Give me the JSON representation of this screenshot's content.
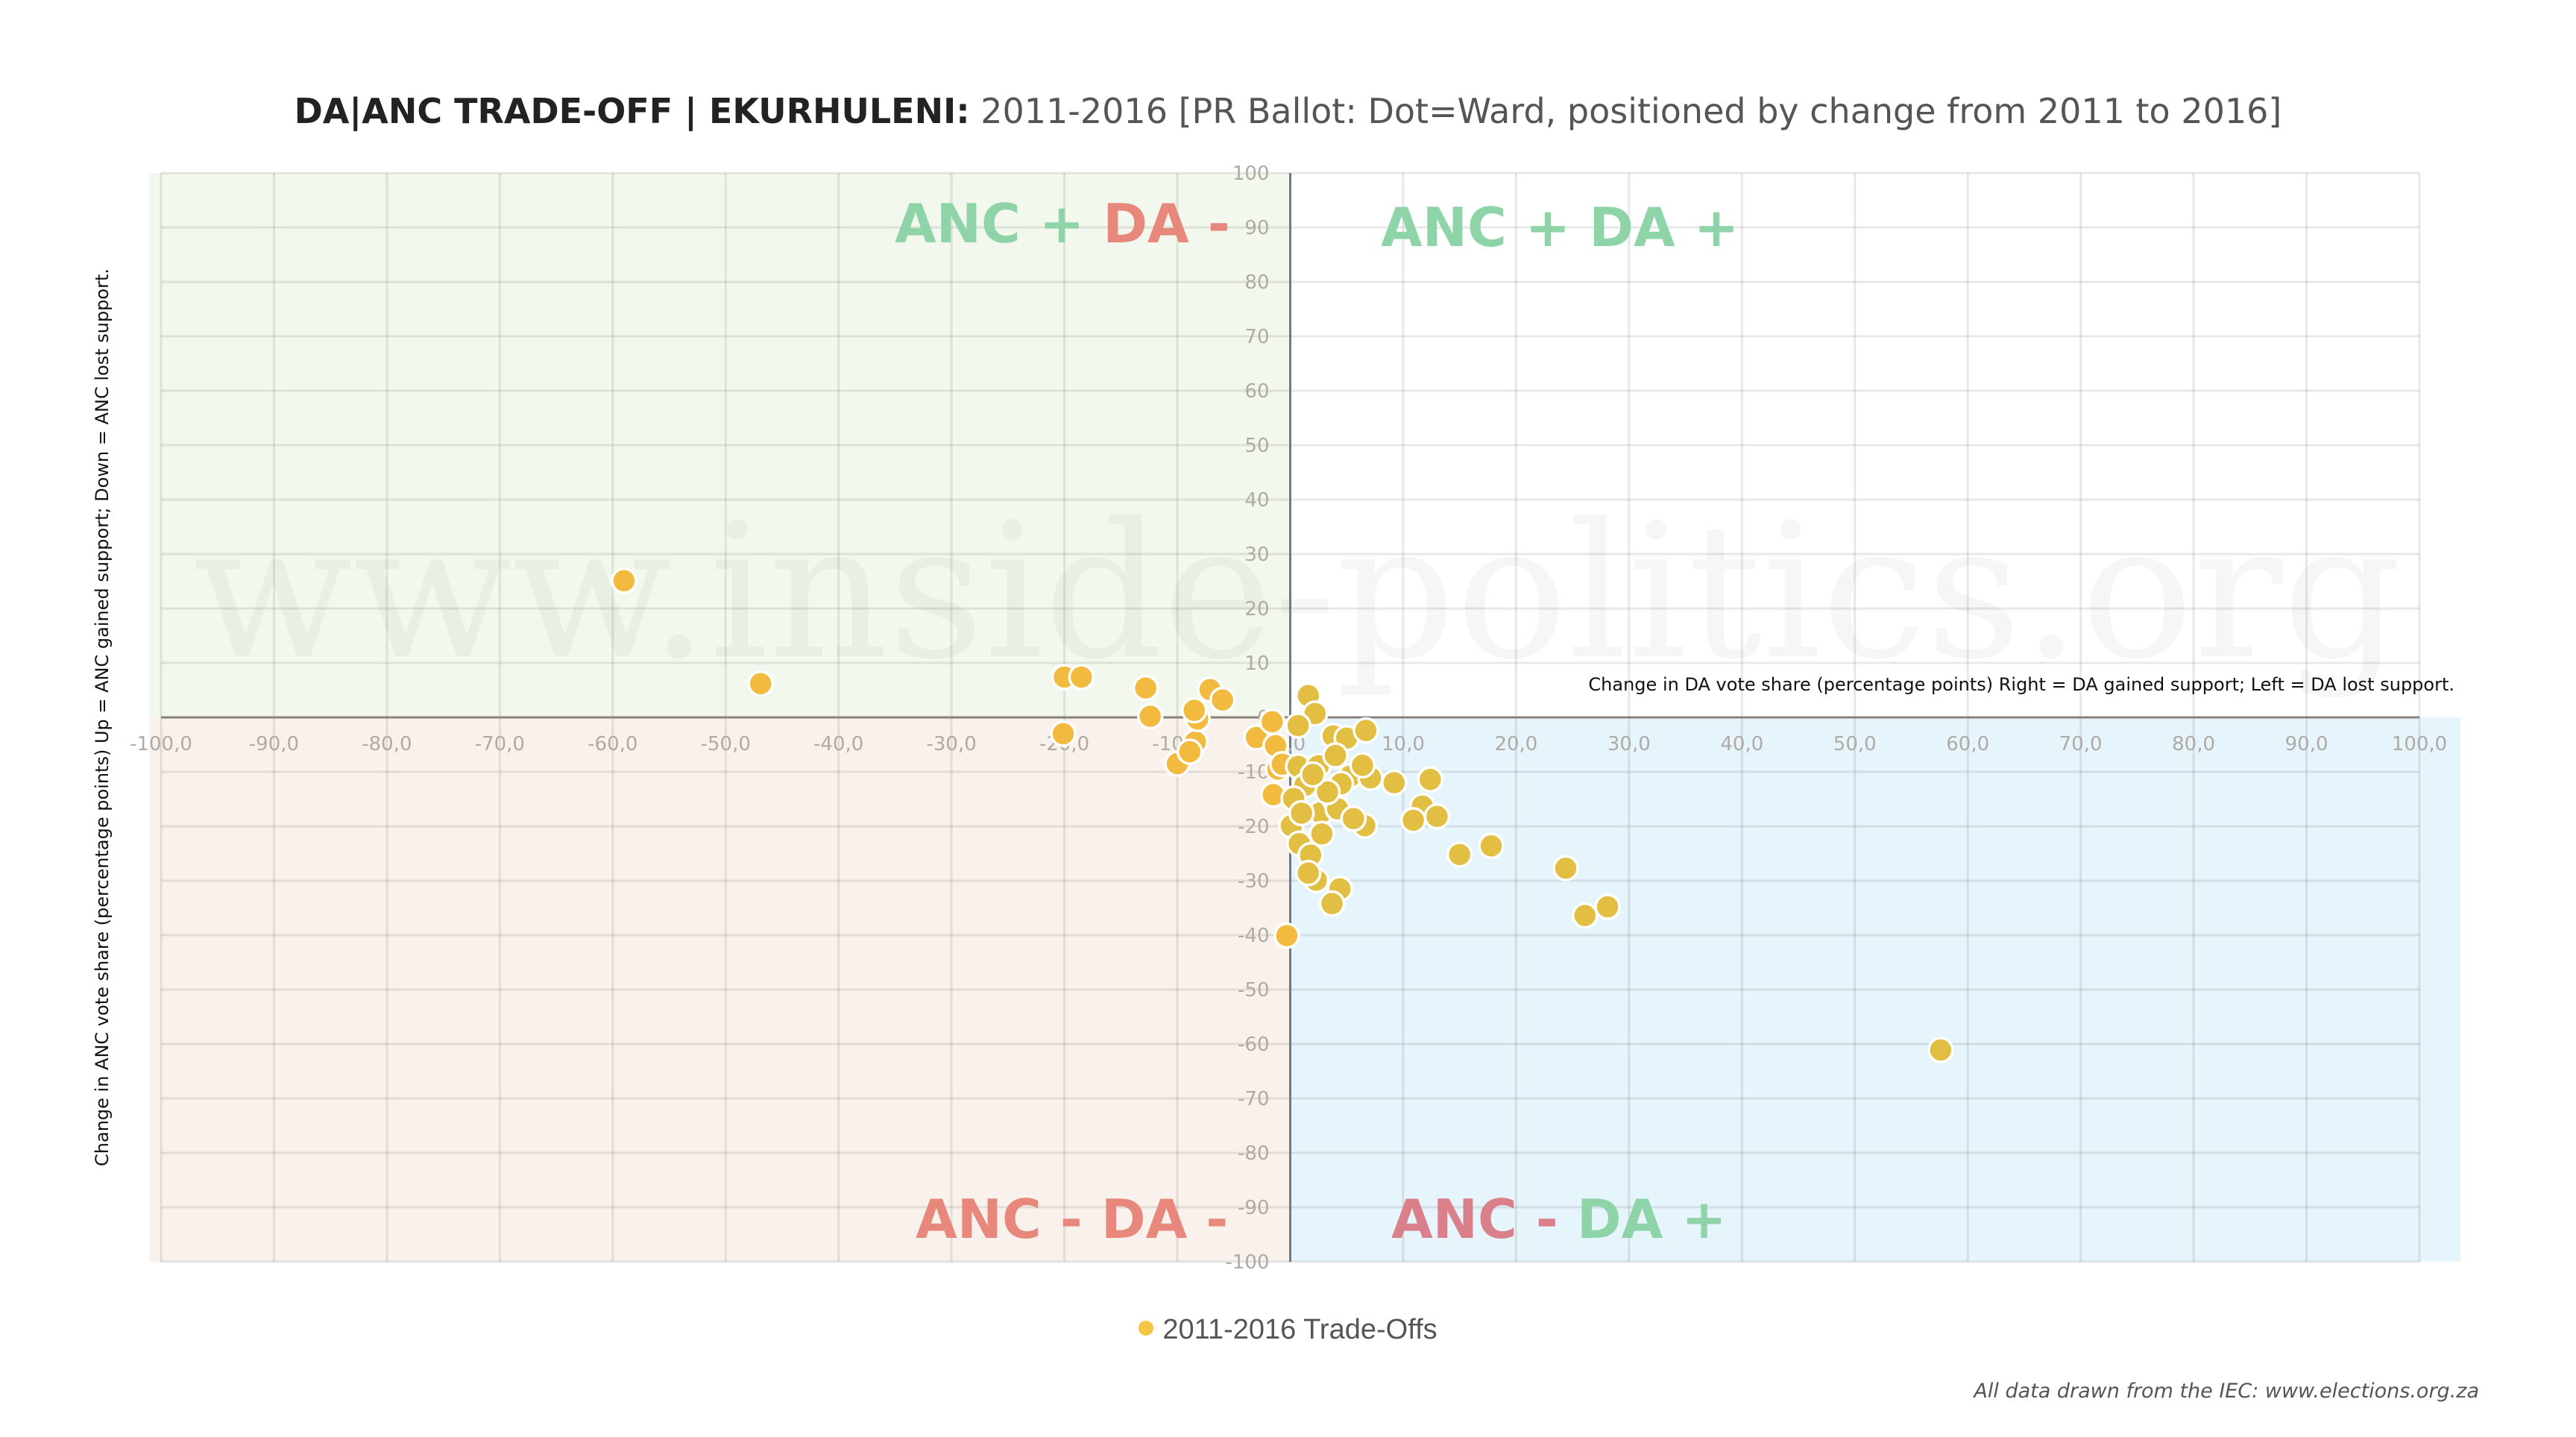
{
  "title": {
    "bold": "DA|ANC TRADE-OFF | EKURHULENI:",
    "rest": "2011-2016 [PR Ballot: Dot=Ward, positioned by change from 2011 to 2016]"
  },
  "watermark": "www.inside-politics.org",
  "footer": "All data drawn from the IEC: www.elections.org.za",
  "colors": {
    "point": "#e2bf42",
    "point_left": "#f2bb3f",
    "legend_dot": "#f4c542",
    "green_label": "#8fd4a8",
    "red_label": "#e8877b",
    "red_label_br": "#d9808a",
    "q_top_left": "#f3f8ee",
    "q_bottom_left": "#f9f1ec",
    "q_bottom_right": "#e6f5fb",
    "q_top_right": "#ffffff"
  },
  "quadrant_labels": {
    "top_left": [
      {
        "text": "ANC + ",
        "color": "green"
      },
      {
        "text": "DA -",
        "color": "red"
      }
    ],
    "top_right": [
      {
        "text": "ANC + DA +",
        "color": "green"
      }
    ],
    "bottom_left": [
      {
        "text": "ANC - DA -",
        "color": "red"
      }
    ],
    "bottom_right": [
      {
        "text": "ANC - ",
        "color": "redbr"
      },
      {
        "text": "DA +",
        "color": "green"
      }
    ]
  },
  "chart_data": {
    "type": "scatter",
    "title": "DA|ANC TRADE-OFF | EKURHULENI: 2011-2016 [PR Ballot: Dot=Ward, positioned by change from 2011 to 2016]",
    "xlabel": "Change in DA vote share (percentage points) Right = DA gained support; Left = DA lost support.",
    "ylabel": "Change in ANC vote share (percentage points) Up = ANC gained support; Down = ANC lost support.",
    "xlim": [
      -100,
      100
    ],
    "ylim": [
      -100,
      100
    ],
    "x_ticks": [
      "-100,0",
      "-90,0",
      "-80,0",
      "-70,0",
      "-60,0",
      "-50,0",
      "-40,0",
      "-30,0",
      "-20,0",
      "-10,0",
      "0,0",
      "10,0",
      "20,0",
      "30,0",
      "40,0",
      "50,0",
      "60,0",
      "70,0",
      "80,0",
      "90,0",
      "100,0"
    ],
    "y_ticks": [
      "100",
      "90",
      "80",
      "70",
      "60",
      "50",
      "40",
      "30",
      "20",
      "10",
      "0",
      "-10",
      "-20",
      "-30",
      "-40",
      "-50",
      "-60",
      "-70",
      "-80",
      "-90",
      "-100"
    ],
    "grid": true,
    "legend": {
      "position": "bottom-center",
      "entries": [
        "2011-2016 Trade-Offs"
      ]
    },
    "series": [
      {
        "name": "2011-2016 Trade-Offs",
        "points": [
          [
            -59.0,
            25.1
          ],
          [
            -46.9,
            6.2
          ],
          [
            -20.0,
            7.4
          ],
          [
            -18.5,
            7.4
          ],
          [
            -12.8,
            5.4
          ],
          [
            -12.4,
            0.2
          ],
          [
            -20.1,
            -3.0
          ],
          [
            -10.0,
            -8.5
          ],
          [
            -8.4,
            -4.5
          ],
          [
            -8.2,
            -0.3
          ],
          [
            -8.9,
            -6.3
          ],
          [
            -8.5,
            1.3
          ],
          [
            -7.1,
            5.1
          ],
          [
            -6.0,
            3.2
          ],
          [
            -3.0,
            -3.7
          ],
          [
            -1.6,
            -0.8
          ],
          [
            -1.3,
            -5.2
          ],
          [
            -1.1,
            -9.5
          ],
          [
            -1.5,
            -14.2
          ],
          [
            -0.7,
            -8.6
          ],
          [
            0.1,
            -19.9
          ],
          [
            -0.3,
            -40.1
          ],
          [
            1.6,
            4.0
          ],
          [
            2.2,
            0.7
          ],
          [
            0.7,
            -1.5
          ],
          [
            3.8,
            -3.4
          ],
          [
            5.0,
            -3.8
          ],
          [
            6.7,
            -2.4
          ],
          [
            0.7,
            -9.0
          ],
          [
            2.5,
            -8.9
          ],
          [
            1.3,
            -12.5
          ],
          [
            0.3,
            -14.9
          ],
          [
            2.7,
            -17.5
          ],
          [
            3.9,
            -15.0
          ],
          [
            5.3,
            -10.8
          ],
          [
            7.1,
            -11.1
          ],
          [
            6.4,
            -8.8
          ],
          [
            6.6,
            -19.9
          ],
          [
            2.8,
            -21.4
          ],
          [
            0.8,
            -23.2
          ],
          [
            1.8,
            -25.3
          ],
          [
            2.3,
            -29.9
          ],
          [
            4.4,
            -31.5
          ],
          [
            3.7,
            -34.2
          ],
          [
            1.6,
            -28.6
          ],
          [
            4.2,
            -16.8
          ],
          [
            4.5,
            -12.2
          ],
          [
            3.3,
            -13.7
          ],
          [
            5.6,
            -18.6
          ],
          [
            1.0,
            -17.6
          ],
          [
            2.0,
            -10.5
          ],
          [
            4.0,
            -7.0
          ],
          [
            9.2,
            -12.0
          ],
          [
            12.4,
            -11.4
          ],
          [
            11.7,
            -16.3
          ],
          [
            13.0,
            -18.2
          ],
          [
            10.9,
            -18.9
          ],
          [
            15.0,
            -25.2
          ],
          [
            17.8,
            -23.6
          ],
          [
            24.4,
            -27.7
          ],
          [
            26.1,
            -36.4
          ],
          [
            28.1,
            -34.8
          ],
          [
            57.6,
            -61.1
          ]
        ]
      }
    ]
  }
}
